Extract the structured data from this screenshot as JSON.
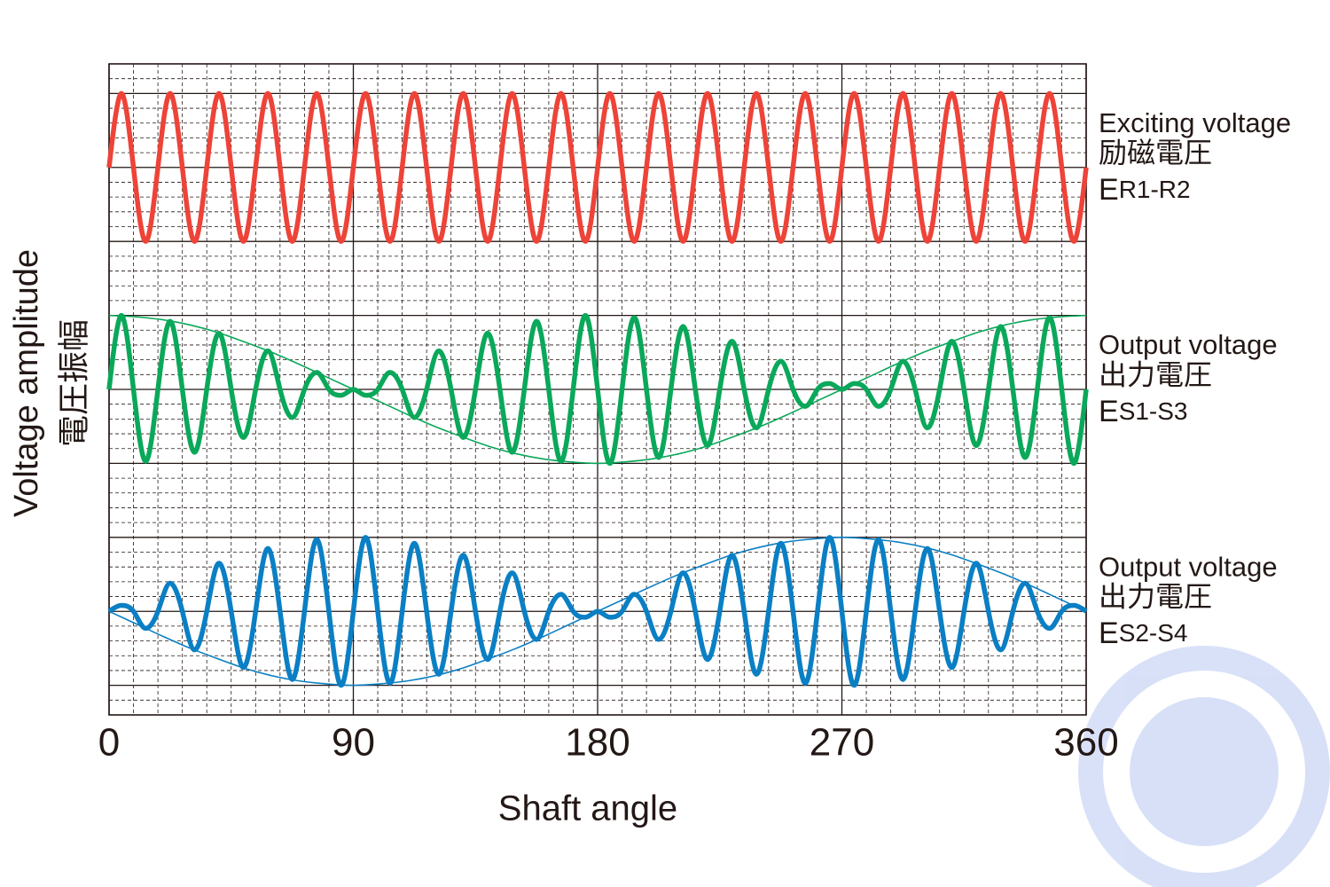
{
  "chart_data": {
    "type": "line",
    "x_label": "Shaft angle",
    "y_label": "Voltage amplitude",
    "y_label_2": "電圧振幅",
    "xlim": [
      0,
      360
    ],
    "xticks": [
      0,
      90,
      180,
      270,
      360
    ],
    "ylim": [
      -1,
      1
    ],
    "grid": true,
    "x": [
      0,
      4.5,
      9,
      13.5,
      18,
      22.5,
      27,
      31.5,
      36,
      40.5,
      45,
      49.5,
      54,
      58.5,
      63,
      67.5,
      72,
      76.5,
      81,
      85.5,
      90,
      94.5,
      99,
      103.5,
      108,
      112.5,
      117,
      121.5,
      126,
      130.5,
      135,
      139.5,
      144,
      148.5,
      153,
      157.5,
      162,
      166.5,
      171,
      175.5,
      180,
      184.5,
      189,
      193.5,
      198,
      202.5,
      207,
      211.5,
      216,
      220.5,
      225,
      229.5,
      234,
      238.5,
      243,
      247.5,
      252,
      256.5,
      261,
      265.5,
      270,
      274.5,
      279,
      283.5,
      288,
      292.5,
      297,
      301.5,
      306,
      310.5,
      315,
      319.5,
      324,
      328.5,
      333,
      337.5,
      342,
      346.5,
      351,
      355.5,
      360
    ],
    "envelope_x": [
      0,
      10,
      20,
      30,
      40,
      50,
      60,
      70,
      80,
      90,
      100,
      110,
      120,
      130,
      140,
      150,
      160,
      170,
      180,
      190,
      200,
      210,
      220,
      230,
      240,
      250,
      260,
      270,
      280,
      290,
      300,
      310,
      320,
      330,
      340,
      350,
      360
    ],
    "series": [
      {
        "name": "Exciting voltage",
        "name_2": "励磁電圧",
        "symbol": "E",
        "subscript": "R1-R2",
        "color": "#ee4338",
        "values": [
          0,
          1,
          0,
          -1,
          0,
          1,
          0,
          -1,
          0,
          1,
          0,
          -1,
          0,
          1,
          0,
          -1,
          0,
          1,
          0,
          -1,
          0,
          1,
          0,
          -1,
          0,
          1,
          0,
          -1,
          0,
          1,
          0,
          -1,
          0,
          1,
          0,
          -1,
          0,
          1,
          0,
          -1,
          0,
          1,
          0,
          -1,
          0,
          1,
          0,
          -1,
          0,
          1,
          0,
          -1,
          0,
          1,
          0,
          -1,
          0,
          1,
          0,
          -1,
          0,
          1,
          0,
          -1,
          0,
          1,
          0,
          -1,
          0,
          1,
          0,
          -1,
          0,
          1,
          0,
          -1,
          0,
          1,
          0,
          -1,
          0
        ]
      },
      {
        "name": "Output voltage",
        "name_2": "出力電圧",
        "symbol": "E",
        "subscript": "S1-S3",
        "color": "#0aa85a",
        "values": [
          0,
          1,
          0,
          -0.97,
          0,
          0.92,
          0,
          -0.85,
          0,
          0.76,
          0,
          -0.65,
          0,
          0.52,
          0,
          -0.38,
          0,
          0.23,
          0,
          -0.08,
          0,
          -0.08,
          0,
          0.23,
          0,
          -0.38,
          0,
          0.52,
          0,
          -0.65,
          0,
          0.76,
          0,
          -0.85,
          0,
          0.92,
          0,
          -0.97,
          0,
          1,
          0,
          -1,
          0,
          0.97,
          0,
          -0.92,
          0,
          0.85,
          0,
          -0.76,
          0,
          0.65,
          0,
          -0.52,
          0,
          0.38,
          0,
          -0.23,
          0,
          0.08,
          0,
          0.08,
          0,
          -0.23,
          0,
          0.38,
          0,
          -0.52,
          0,
          0.65,
          0,
          -0.76,
          0,
          0.85,
          0,
          -0.92,
          0,
          0.97,
          0,
          -1,
          0
        ],
        "envelope": [
          1,
          0.98,
          0.94,
          0.87,
          0.77,
          0.64,
          0.5,
          0.34,
          0.17,
          0,
          -0.17,
          -0.34,
          -0.5,
          -0.64,
          -0.77,
          -0.87,
          -0.94,
          -0.98,
          -1,
          -0.98,
          -0.94,
          -0.87,
          -0.77,
          -0.64,
          -0.5,
          -0.34,
          -0.17,
          0,
          0.17,
          0.34,
          0.5,
          0.64,
          0.77,
          0.87,
          0.94,
          0.98,
          1
        ]
      },
      {
        "name": "Output voltage",
        "name_2": "出力電圧",
        "symbol": "E",
        "subscript": "S2-S4",
        "color": "#0a7fc4",
        "values": [
          0,
          0.08,
          0,
          -0.23,
          0,
          0.38,
          0,
          -0.52,
          0,
          0.65,
          0,
          -0.76,
          0,
          0.85,
          0,
          -0.92,
          0,
          0.97,
          0,
          -1,
          0,
          1,
          0,
          -0.97,
          0,
          0.92,
          0,
          -0.85,
          0,
          0.76,
          0,
          -0.65,
          0,
          0.52,
          0,
          -0.38,
          0,
          0.23,
          0,
          -0.08,
          0,
          -0.08,
          0,
          0.23,
          0,
          -0.38,
          0,
          0.52,
          0,
          -0.65,
          0,
          0.76,
          0,
          -0.85,
          0,
          0.92,
          0,
          -0.97,
          0,
          1,
          0,
          -1,
          0,
          0.97,
          0,
          -0.92,
          0,
          0.85,
          0,
          -0.76,
          0,
          0.65,
          0,
          -0.52,
          0,
          0.38,
          0,
          -0.23,
          0,
          0.08,
          0
        ],
        "envelope": [
          0,
          -0.17,
          -0.34,
          -0.5,
          -0.64,
          -0.77,
          -0.87,
          -0.94,
          -0.98,
          -1,
          -0.98,
          -0.94,
          -0.87,
          -0.77,
          -0.64,
          -0.5,
          -0.34,
          -0.17,
          0,
          0.17,
          0.34,
          0.5,
          0.64,
          0.77,
          0.87,
          0.94,
          0.98,
          1,
          0.98,
          0.94,
          0.87,
          0.77,
          0.64,
          0.5,
          0.34,
          0.17,
          0
        ]
      }
    ]
  }
}
